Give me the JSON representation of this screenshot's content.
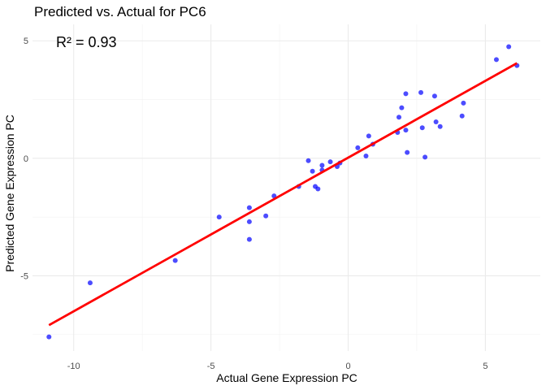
{
  "chart_data": {
    "type": "scatter",
    "title": "Predicted vs. Actual for PC6",
    "xlabel": "Actual Gene Expression PC",
    "ylabel": "Predicted Gene Expression PC",
    "annotation": "R² = 0.93",
    "xlim": [
      -11.5,
      7.0
    ],
    "ylim": [
      -8.2,
      5.7
    ],
    "x_ticks": [
      -10,
      -5,
      0,
      5
    ],
    "x_tick_labels": [
      "-10",
      "-5",
      "0",
      "5"
    ],
    "y_ticks": [
      -5,
      0,
      5
    ],
    "y_tick_labels": [
      "-5",
      "0",
      "5"
    ],
    "grid": true,
    "point_color": "#0000ff",
    "line_color": "#ff0000",
    "points": [
      {
        "x": -10.9,
        "y": -7.6
      },
      {
        "x": -9.4,
        "y": -5.3
      },
      {
        "x": -6.3,
        "y": -4.35
      },
      {
        "x": -4.7,
        "y": -2.5
      },
      {
        "x": -3.6,
        "y": -2.1
      },
      {
        "x": -3.6,
        "y": -2.7
      },
      {
        "x": -3.6,
        "y": -3.45
      },
      {
        "x": -3.0,
        "y": -2.45
      },
      {
        "x": -2.7,
        "y": -1.6
      },
      {
        "x": -1.8,
        "y": -1.2
      },
      {
        "x": -1.45,
        "y": -0.1
      },
      {
        "x": -1.3,
        "y": -0.55
      },
      {
        "x": -1.2,
        "y": -1.2
      },
      {
        "x": -1.1,
        "y": -1.3
      },
      {
        "x": -0.95,
        "y": -0.3
      },
      {
        "x": -0.95,
        "y": -0.5
      },
      {
        "x": -0.65,
        "y": -0.15
      },
      {
        "x": -0.4,
        "y": -0.35
      },
      {
        "x": -0.3,
        "y": -0.2
      },
      {
        "x": 0.35,
        "y": 0.45
      },
      {
        "x": 0.65,
        "y": 0.1
      },
      {
        "x": 0.75,
        "y": 0.95
      },
      {
        "x": 0.9,
        "y": 0.6
      },
      {
        "x": 1.8,
        "y": 1.1
      },
      {
        "x": 1.85,
        "y": 1.75
      },
      {
        "x": 1.95,
        "y": 2.15
      },
      {
        "x": 2.1,
        "y": 1.2
      },
      {
        "x": 2.1,
        "y": 2.75
      },
      {
        "x": 2.15,
        "y": 0.25
      },
      {
        "x": 2.65,
        "y": 2.8
      },
      {
        "x": 2.7,
        "y": 1.3
      },
      {
        "x": 2.8,
        "y": 0.05
      },
      {
        "x": 3.15,
        "y": 2.65
      },
      {
        "x": 3.2,
        "y": 1.55
      },
      {
        "x": 3.35,
        "y": 1.35
      },
      {
        "x": 4.15,
        "y": 1.8
      },
      {
        "x": 4.2,
        "y": 2.35
      },
      {
        "x": 5.4,
        "y": 4.2
      },
      {
        "x": 5.85,
        "y": 4.75
      },
      {
        "x": 6.15,
        "y": 3.95
      }
    ],
    "fit_line": {
      "x": [
        -10.9,
        6.15
      ],
      "y": [
        -7.1,
        4.05
      ]
    }
  }
}
